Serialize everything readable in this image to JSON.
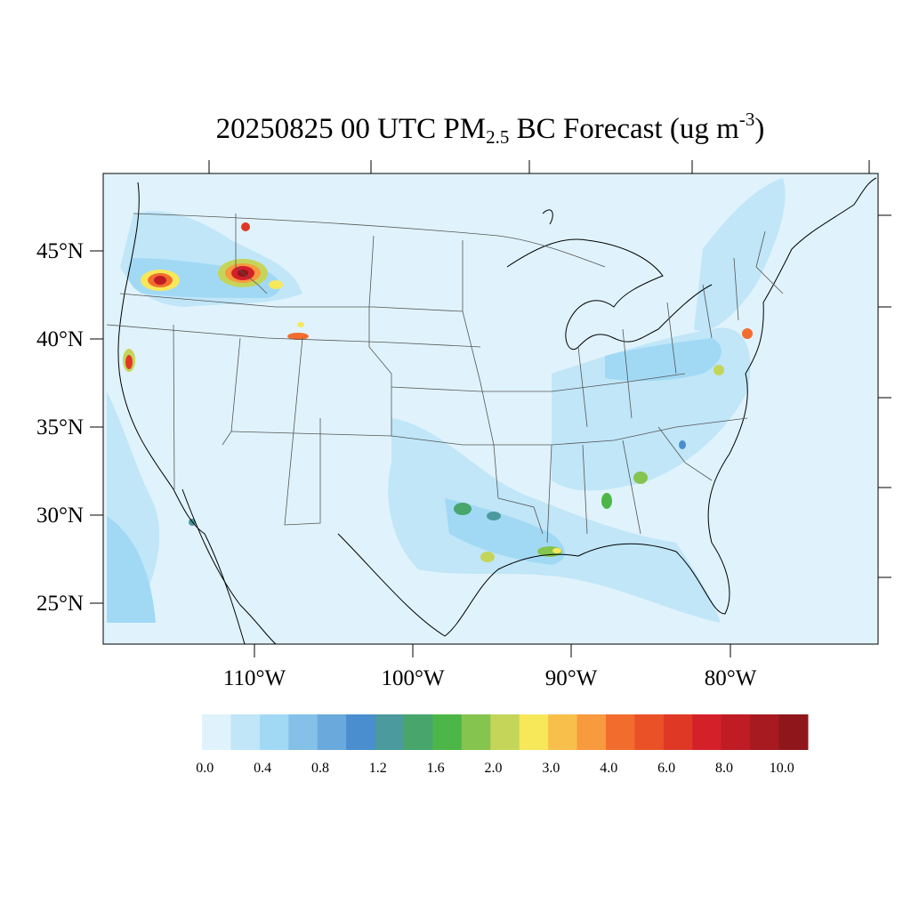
{
  "title": {
    "main": "20250825 00 UTC PM",
    "subscript": "2.5",
    "mid": " BC Forecast (ug m",
    "superscript": "-3",
    "end": ")"
  },
  "map": {
    "lat_labels": [
      "45°N",
      "40°N",
      "35°N",
      "30°N",
      "25°N"
    ],
    "lon_labels": [
      "110°W",
      "100°W",
      "90°W",
      "80°W"
    ],
    "background_color": "#e0f3fc",
    "coastline_color": "#000000",
    "borders_color": "#555555"
  },
  "legend": {
    "colors": [
      "#e0f3fc",
      "#c0e6f8",
      "#a1d9f5",
      "#85c0e8",
      "#69a9db",
      "#4b8ecf",
      "#4a9a9e",
      "#48a56c",
      "#4cb748",
      "#86c450",
      "#c4d55a",
      "#f7e85a",
      "#f9bf4b",
      "#f89a3e",
      "#f26d2d",
      "#ea5127",
      "#df3926",
      "#d42029",
      "#bf1c25",
      "#a71a20",
      "#8f171b"
    ],
    "labels": [
      "0.0",
      "0.4",
      "0.8",
      "1.2",
      "1.6",
      "2.0",
      "3.0",
      "4.0",
      "6.0",
      "8.0",
      "10.0"
    ]
  }
}
